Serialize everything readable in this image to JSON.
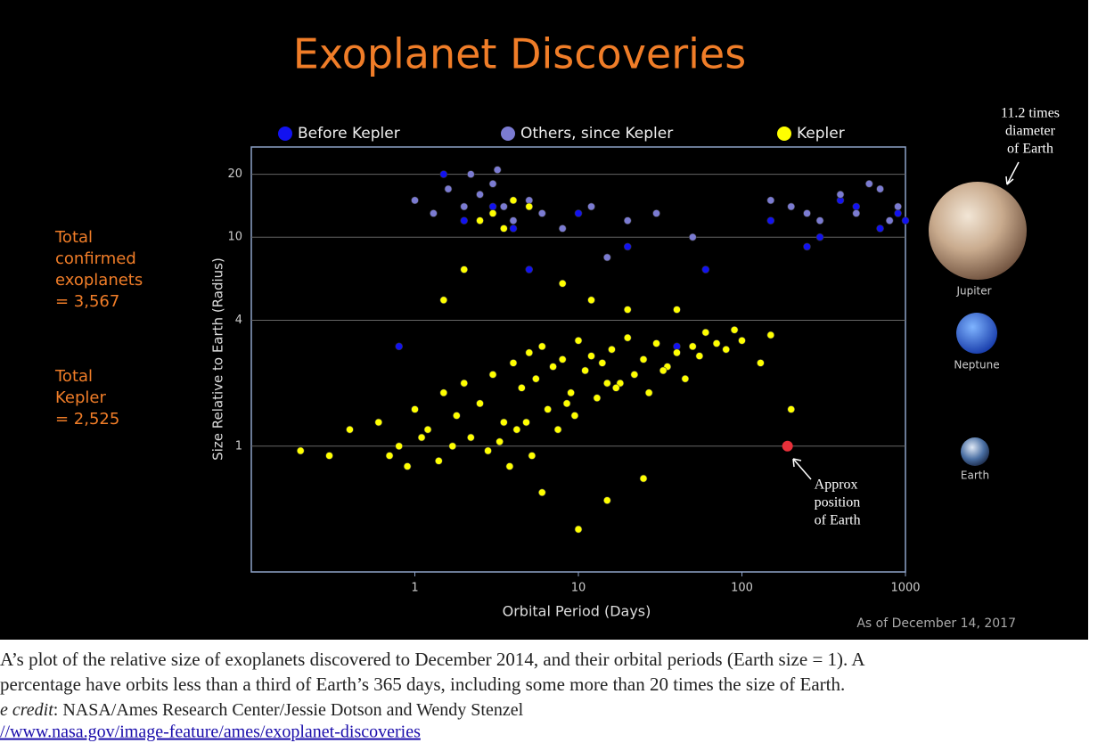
{
  "chart_data": {
    "type": "scatter",
    "title": "Exoplanet Discoveries",
    "x_label": "Orbital Period (Days)",
    "y_label": "Size Relative to Earth (Radius)",
    "xscale": "log",
    "yscale": "log",
    "grid": true,
    "legend": "top",
    "xlim": [
      0.1,
      1000
    ],
    "ylim": [
      0.25,
      27
    ],
    "xticks": [
      1,
      10,
      100,
      1000
    ],
    "yticks": [
      1,
      4,
      10,
      20
    ],
    "series": [
      {
        "name": "Before Kepler",
        "color": "#1212f0",
        "x": [
          1.5,
          2,
          3,
          4,
          0.8,
          10,
          20,
          60,
          150,
          300,
          500,
          700,
          900,
          1000,
          400,
          250,
          5,
          40
        ],
        "y": [
          20,
          12,
          14,
          11,
          3,
          13,
          9,
          7,
          12,
          10,
          14,
          11,
          13,
          12,
          15,
          9,
          7,
          3
        ]
      },
      {
        "name": "Others, since Kepler",
        "color": "#7b7bd2",
        "x": [
          1,
          1.3,
          1.6,
          2,
          2.5,
          3,
          3.5,
          4,
          5,
          6,
          8,
          12,
          20,
          30,
          50,
          150,
          200,
          300,
          400,
          500,
          700,
          900,
          2.2,
          3.2,
          250,
          600,
          800,
          15
        ],
        "y": [
          15,
          13,
          17,
          14,
          16,
          18,
          14,
          12,
          15,
          13,
          11,
          14,
          12,
          13,
          10,
          15,
          14,
          12,
          16,
          13,
          17,
          14,
          20,
          21,
          13,
          18,
          12,
          8
        ]
      },
      {
        "name": "Kepler",
        "color": "#ffff00",
        "x": [
          0.6,
          0.8,
          1,
          1.2,
          1.5,
          1.8,
          2,
          2.5,
          3,
          3.5,
          4,
          4.5,
          5,
          5.5,
          6,
          7,
          8,
          9,
          10,
          11,
          12,
          14,
          16,
          18,
          20,
          25,
          30,
          35,
          40,
          50,
          60,
          80,
          100,
          130,
          0.7,
          0.9,
          1.1,
          1.4,
          1.7,
          2.2,
          2.8,
          3.3,
          3.8,
          4.2,
          4.8,
          5.2,
          6.5,
          7.5,
          8.5,
          9.5,
          13,
          15,
          17,
          22,
          27,
          33,
          45,
          55,
          70,
          90,
          150,
          200,
          0.2,
          0.3,
          0.4,
          3,
          4,
          3.5,
          2.5,
          5,
          8,
          12,
          20,
          40,
          6,
          10,
          15,
          25,
          2,
          1.5
        ],
        "y": [
          1.3,
          1,
          1.5,
          1.2,
          1.8,
          1.4,
          2,
          1.6,
          2.2,
          1.3,
          2.5,
          1.9,
          2.8,
          2.1,
          3,
          2.4,
          2.6,
          1.8,
          3.2,
          2.3,
          2.7,
          2.5,
          2.9,
          2,
          3.3,
          2.6,
          3.1,
          2.4,
          2.8,
          3,
          3.5,
          2.9,
          3.2,
          2.5,
          0.9,
          0.8,
          1.1,
          0.85,
          1,
          1.1,
          0.95,
          1.05,
          0.8,
          1.2,
          1.3,
          0.9,
          1.5,
          1.2,
          1.6,
          1.4,
          1.7,
          2,
          1.9,
          2.2,
          1.8,
          2.3,
          2.1,
          2.7,
          3.1,
          3.6,
          3.4,
          1.5,
          0.95,
          0.9,
          1.2,
          13,
          15,
          11,
          12,
          14,
          6,
          5,
          4.5,
          4.5,
          0.6,
          0.4,
          0.55,
          0.7,
          7,
          5
        ]
      }
    ],
    "annotations": [
      {
        "text_lines": [
          "Approx",
          "position",
          "of Earth"
        ],
        "x": 190,
        "y": 1,
        "color": "#e8303a"
      }
    ],
    "date_note": "As of December 14, 2017"
  },
  "totals": [
    {
      "lines": [
        "Total",
        "confirmed",
        "exoplanets",
        " = 3,567"
      ]
    },
    {
      "lines": [
        "Total",
        "Kepler",
        "= 2,525"
      ]
    }
  ],
  "planets": {
    "note_lines": [
      "11.2 times",
      "diameter",
      "of Earth"
    ],
    "labels": [
      "Jupiter",
      "Neptune",
      "Earth"
    ]
  },
  "caption": {
    "lines": [
      "A’s plot of the relative size of exoplanets discovered to December 2014, and their orbital periods (Earth size = 1). A",
      " percentage have orbits less than a third of Earth’s 365 days, including some more than 20 times the size of Earth."
    ],
    "credit": [
      "e credit",
      ": NASA/Ames Research Center/Jessie Dotson and Wendy Stenzel"
    ],
    "link": "//www.nasa.gov/image-feature/ames/exoplanet-discoveries"
  }
}
